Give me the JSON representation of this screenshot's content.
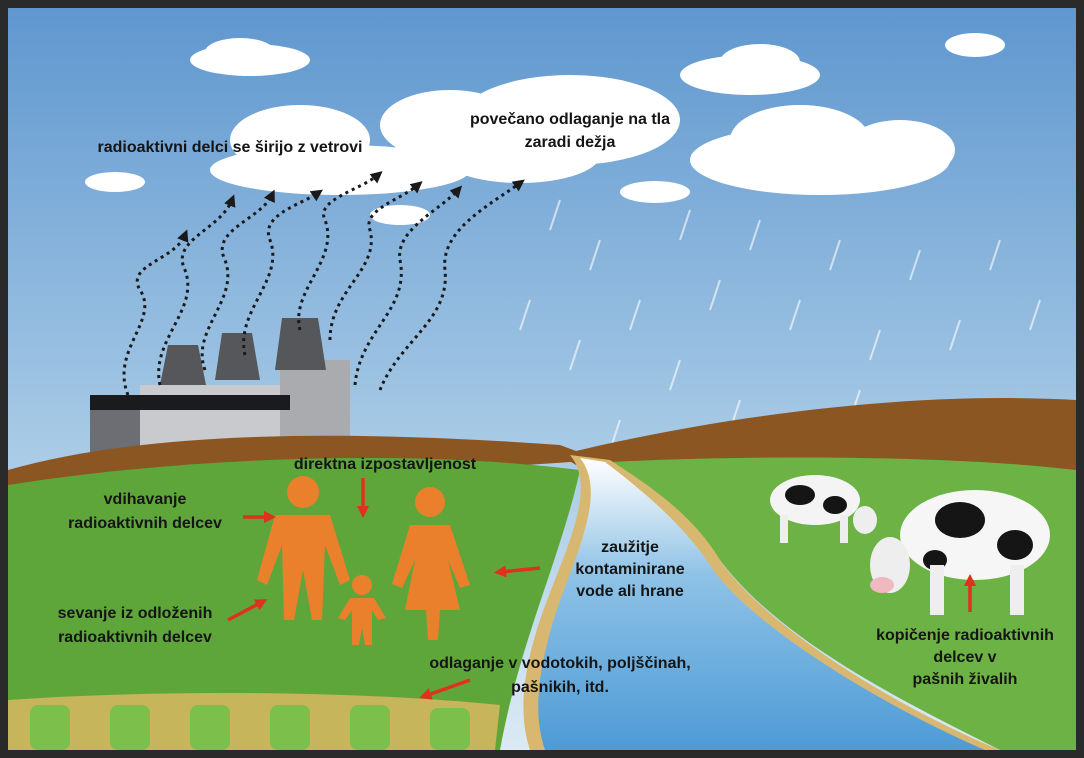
{
  "labels": [
    {
      "lines": [
        "radioaktivni delci se širijo z vetrovi"
      ]
    },
    {
      "lines": [
        "povečano odlaganje na tla",
        "zaradi dežja"
      ]
    },
    {
      "lines": [
        "direktna izpostavljenost"
      ]
    },
    {
      "lines": [
        "vdihavanje",
        "radioaktivnih delcev"
      ]
    },
    {
      "lines": [
        "zaužitje",
        "kontaminirane",
        "vode ali hrane"
      ]
    },
    {
      "lines": [
        "sevanje iz odloženih",
        "radioaktivnih delcev"
      ]
    },
    {
      "lines": [
        "odlaganje v vodotokih, poljščinah,",
        "pašnikih, itd."
      ]
    },
    {
      "lines": [
        "kopičenje radioaktivnih",
        "delcev v",
        "pašnih živalih"
      ]
    }
  ]
}
